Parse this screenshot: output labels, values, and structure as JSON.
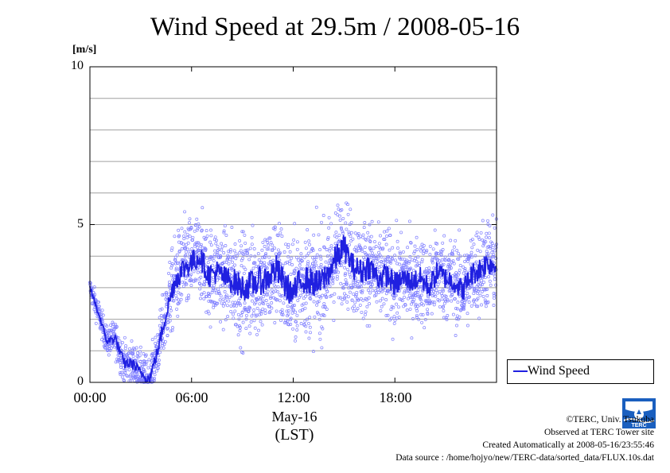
{
  "title": "Wind Speed at 29.5m / 2008-05-16",
  "unit_label": "[m/s]",
  "x_axis": {
    "date_label": "May-16",
    "timezone_label": "(LST)"
  },
  "credits": {
    "copyright": "©TERC, Univ. Tsukuba",
    "site": "Observed at TERC Tower site",
    "created": "Created Automatically at 2008-05-16/23:55:46",
    "source": "Data source : /home/hojyo/new/TERC-data/sorted_data/FLUX.10s.dat"
  },
  "logo_text": "TERC",
  "colors": {
    "series": "#2020e0",
    "points": "#8080ff",
    "grid": "#a0a0a0"
  },
  "chart_data": {
    "type": "line",
    "title": "Wind Speed at 29.5m / 2008-05-16",
    "xlabel": "May-16 (LST)",
    "ylabel": "[m/s]",
    "xlim": [
      "00:00",
      "23:59"
    ],
    "ylim": [
      0,
      10
    ],
    "yticks": [
      0,
      5,
      10
    ],
    "yticks_labels": [
      "0",
      "5",
      "10"
    ],
    "xticks_labels": [
      "00:00",
      "06:00",
      "12:00",
      "18:00"
    ],
    "grid": true,
    "legend": "lower-right outside",
    "x": [
      "00:00",
      "00:30",
      "01:00",
      "01:30",
      "02:00",
      "02:30",
      "03:00",
      "03:30",
      "04:00",
      "04:30",
      "05:00",
      "05:30",
      "06:00",
      "06:30",
      "07:00",
      "07:30",
      "08:00",
      "08:30",
      "09:00",
      "09:30",
      "10:00",
      "10:30",
      "11:00",
      "11:30",
      "12:00",
      "12:30",
      "13:00",
      "13:30",
      "14:00",
      "14:30",
      "15:00",
      "15:30",
      "16:00",
      "16:30",
      "17:00",
      "17:30",
      "18:00",
      "18:30",
      "19:00",
      "19:30",
      "20:00",
      "20:30",
      "21:00",
      "21:30",
      "22:00",
      "22:30",
      "23:00",
      "23:30",
      "23:55"
    ],
    "series": [
      {
        "name": "Wind Speed",
        "values": [
          3.0,
          2.2,
          1.3,
          1.4,
          0.6,
          0.6,
          0.3,
          0.1,
          1.0,
          2.2,
          3.2,
          3.6,
          3.8,
          4.0,
          3.4,
          3.5,
          3.3,
          3.2,
          3.0,
          3.1,
          3.2,
          3.3,
          3.6,
          3.1,
          2.8,
          3.3,
          3.2,
          3.1,
          3.4,
          3.9,
          4.3,
          3.7,
          3.5,
          3.7,
          3.3,
          3.4,
          3.1,
          3.3,
          3.2,
          3.3,
          3.0,
          3.5,
          3.3,
          3.2,
          2.9,
          3.4,
          3.6,
          3.8,
          3.7
        ]
      }
    ],
    "scatter_spread": [
      0.3,
      0.4,
      0.4,
      0.5,
      0.6,
      0.6,
      0.6,
      0.6,
      0.7,
      1.0,
      1.2,
      1.3,
      1.3,
      1.2,
      1.3,
      1.3,
      1.3,
      1.4,
      1.5,
      1.5,
      1.5,
      1.5,
      1.5,
      1.5,
      1.5,
      1.5,
      1.5,
      1.5,
      1.5,
      1.5,
      1.4,
      1.4,
      1.4,
      1.4,
      1.3,
      1.3,
      1.3,
      1.2,
      1.2,
      1.2,
      1.2,
      1.2,
      1.2,
      1.2,
      1.2,
      1.2,
      1.3,
      1.3,
      1.3
    ]
  }
}
